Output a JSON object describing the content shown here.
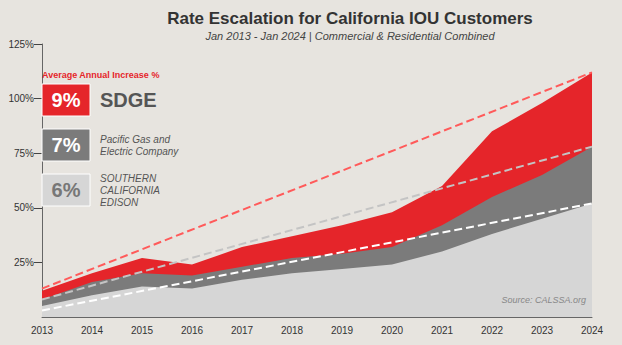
{
  "chart_data": {
    "type": "area",
    "title": "Rate Escalation for California IOU Customers",
    "subtitle": "Jan 2013 - Jan 2024 | Commercial & Residential Combined",
    "annotation_title": "Average Annual Increase %",
    "source": "Source: CALSSA.org",
    "categories": [
      "2013",
      "2014",
      "2015",
      "2016",
      "2017",
      "2018",
      "2019",
      "2020",
      "2021",
      "2022",
      "2023",
      "2024"
    ],
    "series": [
      {
        "name": "SDGE",
        "color": "#e5252a",
        "avg_increase_label": "9%",
        "values": [
          12,
          20,
          27,
          24,
          32,
          37,
          42,
          48,
          60,
          85,
          98,
          112
        ]
      },
      {
        "name": "Pacific Gas and Electric Company",
        "color": "#7b7b7b",
        "avg_increase_label": "7%",
        "values": [
          8,
          16,
          20,
          19,
          23,
          27,
          29,
          32,
          42,
          55,
          65,
          78
        ]
      },
      {
        "name": "SOUTHERN CALIFORNIA EDISON",
        "color": "#d6d6d6",
        "avg_increase_label": "6%",
        "values": [
          5,
          10,
          14,
          13,
          17,
          20,
          22,
          24,
          30,
          38,
          45,
          52
        ]
      },
      {
        "type": "line",
        "line_style": "dashed",
        "color": "#ff5a5a",
        "values": [
          13,
          null,
          null,
          null,
          null,
          null,
          null,
          null,
          null,
          null,
          null,
          112
        ]
      },
      {
        "type": "line",
        "line_style": "dashed",
        "color": "#c4c4c4",
        "values": [
          8,
          null,
          null,
          null,
          null,
          null,
          null,
          null,
          null,
          null,
          null,
          78
        ]
      },
      {
        "type": "line",
        "line_style": "dashed",
        "color": "#ffffff",
        "values": [
          3,
          null,
          null,
          null,
          null,
          null,
          null,
          null,
          null,
          null,
          null,
          52
        ]
      }
    ],
    "ylim": [
      0,
      125
    ],
    "yticks": [
      {
        "value": 25,
        "label": "25%"
      },
      {
        "value": 50,
        "label": "50%"
      },
      {
        "value": 75,
        "label": "75%"
      },
      {
        "value": 100,
        "label": "100%"
      },
      {
        "value": 125,
        "label": "125%"
      }
    ],
    "grid": false,
    "stacked": false,
    "legend": "upper left"
  }
}
